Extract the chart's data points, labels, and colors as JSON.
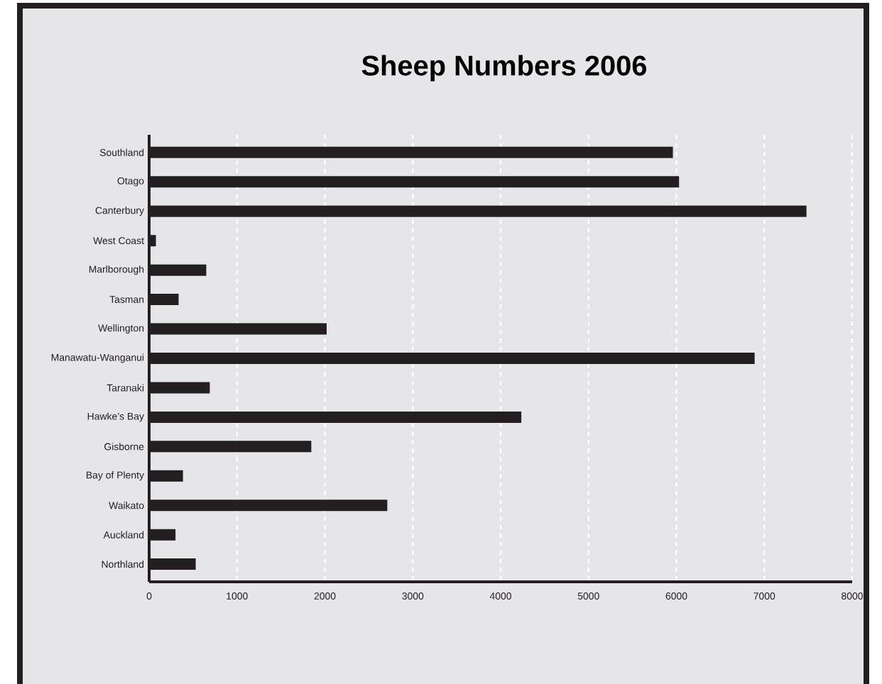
{
  "chart_data": {
    "type": "bar",
    "orientation": "horizontal",
    "title": "Sheep Numbers 2006",
    "categories": [
      "Southland",
      "Otago",
      "Canterbury",
      "West Coast",
      "Marlborough",
      "Tasman",
      "Wellington",
      "Manawatu-Wanganui",
      "Taranaki",
      "Hawke’s Bay",
      "Gisborne",
      "Bay of Plenty",
      "Waikato",
      "Auckland",
      "Northland"
    ],
    "values": [
      5960,
      6030,
      7480,
      77,
      650,
      335,
      2020,
      6890,
      690,
      4235,
      1845,
      385,
      2710,
      300,
      530
    ],
    "color": "#231f20",
    "xlim": [
      0,
      8000
    ],
    "xticks": [
      0,
      1000,
      2000,
      3000,
      4000,
      5000,
      6000,
      7000,
      8000
    ],
    "grid": "x"
  }
}
